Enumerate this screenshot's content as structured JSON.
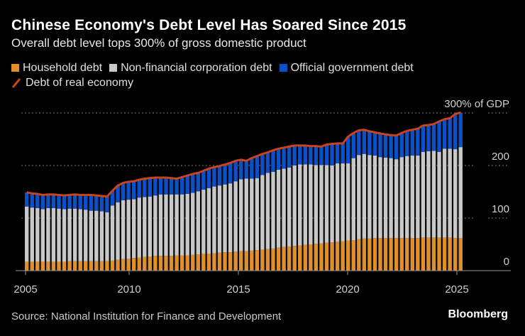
{
  "title": "Chinese Economy's Debt Level Has Soared Since 2015",
  "subtitle": "Overall debt level tops 300% of gross domestic product",
  "source": "Source: National Institution for Finance and Development",
  "logo": "Bloomberg",
  "colors": {
    "household": "#e0902a",
    "corporate": "#c8c8c8",
    "government": "#0a50c8",
    "line": "#c9441c",
    "background": "#000000"
  },
  "chart_data": {
    "type": "bar",
    "stacked": true,
    "title": "Chinese Economy's Debt Level Has Soared Since 2015",
    "subtitle": "Overall debt level tops 300% of gross domestic product",
    "frequency": "quarterly",
    "start": "2005Q1",
    "end": "2025Q2",
    "x_tick_labels": [
      "2005",
      "2010",
      "2015",
      "2020",
      "2025"
    ],
    "y_tick_labels": [
      "0",
      "100",
      "200",
      "300% of GDP"
    ],
    "y_ticks": [
      0,
      100,
      200,
      300
    ],
    "ylim": [
      0,
      300
    ],
    "y_axis_side": "right",
    "grid": true,
    "legend_placement": "top-left",
    "series": [
      {
        "name": "Household debt",
        "kind": "bar",
        "values": [
          17,
          17,
          17,
          17,
          17,
          17,
          17,
          17,
          18,
          18,
          18,
          18,
          18,
          18,
          18,
          18,
          19,
          21,
          22,
          23,
          24,
          25,
          26,
          27,
          28,
          28,
          28,
          28,
          29,
          29,
          29,
          30,
          31,
          32,
          32,
          33,
          34,
          35,
          35,
          36,
          37,
          37,
          38,
          39,
          40,
          41,
          42,
          44,
          45,
          46,
          47,
          48,
          49,
          50,
          51,
          52,
          53,
          54,
          55,
          56,
          57,
          58,
          60,
          61,
          61,
          62,
          62,
          62,
          62,
          62,
          62,
          62,
          62,
          62,
          63,
          63,
          63,
          63,
          63,
          63,
          62,
          62
        ]
      },
      {
        "name": "Non-financial corporation debt",
        "kind": "bar",
        "values": [
          105,
          103,
          102,
          100,
          102,
          102,
          101,
          100,
          100,
          100,
          99,
          98,
          96,
          96,
          95,
          93,
          105,
          109,
          112,
          112,
          112,
          114,
          114,
          114,
          115,
          117,
          117,
          117,
          116,
          116,
          117,
          118,
          120,
          122,
          125,
          127,
          128,
          129,
          131,
          134,
          137,
          138,
          137,
          137,
          142,
          145,
          146,
          148,
          149,
          150,
          153,
          154,
          153,
          152,
          150,
          149,
          148,
          146,
          149,
          148,
          147,
          156,
          160,
          161,
          159,
          157,
          154,
          153,
          152,
          150,
          154,
          156,
          157,
          157,
          163,
          164,
          165,
          163,
          169,
          169,
          169,
          173
        ]
      },
      {
        "name": "Official government debt",
        "kind": "bar",
        "values": [
          27,
          27,
          27,
          27,
          26,
          26,
          26,
          26,
          26,
          27,
          27,
          28,
          30,
          29,
          29,
          30,
          28,
          32,
          33,
          34,
          34,
          34,
          35,
          35,
          34,
          32,
          32,
          31,
          30,
          33,
          35,
          36,
          35,
          36,
          37,
          37,
          37,
          38,
          39,
          39,
          37,
          34,
          39,
          42,
          40,
          39,
          41,
          40,
          40,
          40,
          38,
          36,
          36,
          35,
          36,
          35,
          39,
          41,
          38,
          38,
          51,
          48,
          47,
          46,
          45,
          44,
          45,
          44,
          44,
          45,
          46,
          48,
          49,
          51,
          50,
          50,
          51,
          58,
          56,
          58,
          67,
          66
        ]
      },
      {
        "name": "Debt of real economy",
        "kind": "line",
        "values": [
          149,
          147,
          146,
          144,
          145,
          145,
          144,
          143,
          144,
          145,
          144,
          144,
          144,
          143,
          142,
          141,
          152,
          162,
          167,
          169,
          170,
          173,
          175,
          176,
          177,
          177,
          177,
          176,
          175,
          178,
          181,
          184,
          186,
          190,
          194,
          197,
          199,
          202,
          205,
          209,
          211,
          209,
          214,
          218,
          222,
          225,
          229,
          232,
          234,
          236,
          238,
          238,
          238,
          237,
          237,
          236,
          240,
          241,
          242,
          242,
          255,
          262,
          267,
          268,
          265,
          263,
          261,
          259,
          258,
          257,
          262,
          266,
          268,
          270,
          276,
          277,
          279,
          284,
          288,
          290,
          298,
          301
        ]
      }
    ]
  }
}
